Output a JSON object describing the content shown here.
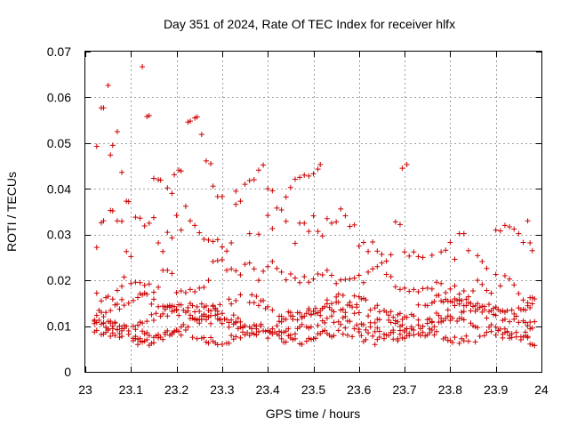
{
  "chart_data": {
    "type": "scatter",
    "title": "Day 351 of 2024, Rate Of TEC Index for receiver hlfx",
    "xlabel": "GPS time / hours",
    "ylabel": "ROTI / TECUs",
    "xlim": [
      23,
      24
    ],
    "ylim": [
      0,
      0.07
    ],
    "x_ticks": [
      "23",
      "23.1",
      "23.2",
      "23.3",
      "23.4",
      "23.5",
      "23.6",
      "23.7",
      "23.8",
      "23.9",
      "24"
    ],
    "y_ticks": [
      "0",
      "0.01",
      "0.02",
      "0.03",
      "0.04",
      "0.05",
      "0.06",
      "0.07"
    ],
    "grid": true,
    "marker": "+",
    "color": "#cc0000",
    "series": [
      {
        "name": "ROTI",
        "points": [
          [
            23.025,
            0.0493
          ],
          [
            23.035,
            0.0577
          ],
          [
            23.04,
            0.0577
          ],
          [
            23.05,
            0.0626
          ],
          [
            23.055,
            0.0474
          ],
          [
            23.06,
            0.0495
          ],
          [
            23.07,
            0.0525
          ],
          [
            23.08,
            0.0436
          ],
          [
            23.09,
            0.0373
          ],
          [
            23.095,
            0.0372
          ],
          [
            23.125,
            0.0667
          ],
          [
            23.135,
            0.0558
          ],
          [
            23.14,
            0.056
          ],
          [
            23.15,
            0.0423
          ],
          [
            23.16,
            0.042
          ],
          [
            23.165,
            0.0419
          ],
          [
            23.18,
            0.0402
          ],
          [
            23.19,
            0.039
          ],
          [
            23.195,
            0.0431
          ],
          [
            23.205,
            0.0441
          ],
          [
            23.21,
            0.0439
          ],
          [
            23.225,
            0.0546
          ],
          [
            23.23,
            0.0548
          ],
          [
            23.24,
            0.0555
          ],
          [
            23.245,
            0.0557
          ],
          [
            23.255,
            0.0519
          ],
          [
            23.265,
            0.0461
          ],
          [
            23.275,
            0.0455
          ],
          [
            23.28,
            0.0406
          ],
          [
            23.29,
            0.0383
          ],
          [
            23.3,
            0.0383
          ],
          [
            23.33,
            0.0395
          ],
          [
            23.35,
            0.041
          ],
          [
            23.36,
            0.0418
          ],
          [
            23.37,
            0.042
          ],
          [
            23.38,
            0.0441
          ],
          [
            23.39,
            0.0452
          ],
          [
            23.4,
            0.04
          ],
          [
            23.41,
            0.0396
          ],
          [
            23.44,
            0.0382
          ],
          [
            23.45,
            0.0403
          ],
          [
            23.46,
            0.0421
          ],
          [
            23.47,
            0.0425
          ],
          [
            23.48,
            0.043
          ],
          [
            23.49,
            0.0428
          ],
          [
            23.5,
            0.0433
          ],
          [
            23.51,
            0.0443
          ],
          [
            23.515,
            0.0453
          ],
          [
            23.695,
            0.0445
          ],
          [
            23.705,
            0.0453
          ],
          [
            23.025,
            0.0272
          ],
          [
            23.035,
            0.0326
          ],
          [
            23.04,
            0.033
          ],
          [
            23.055,
            0.0353
          ],
          [
            23.06,
            0.0352
          ],
          [
            23.07,
            0.033
          ],
          [
            23.08,
            0.0329
          ],
          [
            23.09,
            0.0263
          ],
          [
            23.1,
            0.0252
          ],
          [
            23.11,
            0.0338
          ],
          [
            23.12,
            0.0336
          ],
          [
            23.13,
            0.0319
          ],
          [
            23.14,
            0.0325
          ],
          [
            23.15,
            0.0337
          ],
          [
            23.16,
            0.0282
          ],
          [
            23.17,
            0.0263
          ],
          [
            23.18,
            0.0305
          ],
          [
            23.19,
            0.0293
          ],
          [
            23.2,
            0.0342
          ],
          [
            23.21,
            0.031
          ],
          [
            23.22,
            0.0362
          ],
          [
            23.23,
            0.033
          ],
          [
            23.24,
            0.032
          ],
          [
            23.25,
            0.0304
          ],
          [
            23.26,
            0.029
          ],
          [
            23.27,
            0.0288
          ],
          [
            23.28,
            0.0285
          ],
          [
            23.29,
            0.0289
          ],
          [
            23.3,
            0.0273
          ],
          [
            23.31,
            0.0264
          ],
          [
            23.32,
            0.0282
          ],
          [
            23.33,
            0.0366
          ],
          [
            23.34,
            0.0373
          ],
          [
            23.36,
            0.0302
          ],
          [
            23.38,
            0.0301
          ],
          [
            23.4,
            0.0342
          ],
          [
            23.41,
            0.0313
          ],
          [
            23.42,
            0.0358
          ],
          [
            23.43,
            0.0354
          ],
          [
            23.44,
            0.0329
          ],
          [
            23.46,
            0.0281
          ],
          [
            23.47,
            0.0325
          ],
          [
            23.48,
            0.0325
          ],
          [
            23.49,
            0.0307
          ],
          [
            23.5,
            0.0341
          ],
          [
            23.51,
            0.0307
          ],
          [
            23.52,
            0.0297
          ],
          [
            23.53,
            0.0335
          ],
          [
            23.54,
            0.0325
          ],
          [
            23.55,
            0.0328
          ],
          [
            23.56,
            0.0356
          ],
          [
            23.57,
            0.0341
          ],
          [
            23.58,
            0.0318
          ],
          [
            23.59,
            0.0321
          ],
          [
            23.6,
            0.0275
          ],
          [
            23.61,
            0.0283
          ],
          [
            23.62,
            0.0263
          ],
          [
            23.63,
            0.0284
          ],
          [
            23.64,
            0.0264
          ],
          [
            23.65,
            0.0257
          ],
          [
            23.66,
            0.0242
          ],
          [
            23.67,
            0.0256
          ],
          [
            23.68,
            0.0328
          ],
          [
            23.69,
            0.0322
          ],
          [
            23.7,
            0.0262
          ],
          [
            23.71,
            0.0253
          ],
          [
            23.72,
            0.0262
          ],
          [
            23.73,
            0.0252
          ],
          [
            23.74,
            0.025
          ],
          [
            23.76,
            0.0255
          ],
          [
            23.78,
            0.0262
          ],
          [
            23.79,
            0.0266
          ],
          [
            23.8,
            0.0283
          ],
          [
            23.81,
            0.0246
          ],
          [
            23.82,
            0.0302
          ],
          [
            23.83,
            0.0302
          ],
          [
            23.84,
            0.0265
          ],
          [
            23.86,
            0.0254
          ],
          [
            23.87,
            0.0241
          ],
          [
            23.88,
            0.0226
          ],
          [
            23.9,
            0.031
          ],
          [
            23.91,
            0.0308
          ],
          [
            23.92,
            0.032
          ],
          [
            23.93,
            0.0317
          ],
          [
            23.94,
            0.0312
          ],
          [
            23.95,
            0.0302
          ],
          [
            23.96,
            0.0283
          ],
          [
            23.97,
            0.033
          ],
          [
            23.975,
            0.0282
          ],
          [
            23.98,
            0.0265
          ],
          [
            23.025,
            0.0172
          ],
          [
            23.035,
            0.0155
          ],
          [
            23.045,
            0.0162
          ],
          [
            23.05,
            0.0165
          ],
          [
            23.06,
            0.0159
          ],
          [
            23.07,
            0.0178
          ],
          [
            23.08,
            0.0187
          ],
          [
            23.085,
            0.0207
          ],
          [
            23.1,
            0.0193
          ],
          [
            23.11,
            0.0196
          ],
          [
            23.12,
            0.0195
          ],
          [
            23.13,
            0.0189
          ],
          [
            23.14,
            0.0192
          ],
          [
            23.15,
            0.0174
          ],
          [
            23.16,
            0.0185
          ],
          [
            23.17,
            0.0222
          ],
          [
            23.18,
            0.0222
          ],
          [
            23.19,
            0.0215
          ],
          [
            23.2,
            0.0173
          ],
          [
            23.21,
            0.0177
          ],
          [
            23.22,
            0.0173
          ],
          [
            23.23,
            0.018
          ],
          [
            23.24,
            0.0175
          ],
          [
            23.25,
            0.0183
          ],
          [
            23.26,
            0.0185
          ],
          [
            23.27,
            0.02
          ],
          [
            23.28,
            0.0241
          ],
          [
            23.29,
            0.0243
          ],
          [
            23.3,
            0.0245
          ],
          [
            23.31,
            0.0222
          ],
          [
            23.32,
            0.0225
          ],
          [
            23.33,
            0.0221
          ],
          [
            23.34,
            0.0212
          ],
          [
            23.35,
            0.0235
          ],
          [
            23.36,
            0.0238
          ],
          [
            23.37,
            0.0225
          ],
          [
            23.38,
            0.02
          ],
          [
            23.39,
            0.022
          ],
          [
            23.4,
            0.023
          ],
          [
            23.41,
            0.0241
          ],
          [
            23.42,
            0.0226
          ],
          [
            23.43,
            0.0218
          ],
          [
            23.44,
            0.0201
          ],
          [
            23.45,
            0.0214
          ],
          [
            23.46,
            0.0205
          ],
          [
            23.47,
            0.0195
          ],
          [
            23.48,
            0.0208
          ],
          [
            23.49,
            0.0196
          ],
          [
            23.5,
            0.0203
          ],
          [
            23.51,
            0.0214
          ],
          [
            23.52,
            0.0212
          ],
          [
            23.53,
            0.0222
          ],
          [
            23.54,
            0.0211
          ],
          [
            23.55,
            0.0193
          ],
          [
            23.56,
            0.0201
          ],
          [
            23.57,
            0.0202
          ],
          [
            23.58,
            0.0203
          ],
          [
            23.59,
            0.0205
          ],
          [
            23.6,
            0.0211
          ],
          [
            23.61,
            0.0195
          ],
          [
            23.62,
            0.0218
          ],
          [
            23.63,
            0.0225
          ],
          [
            23.64,
            0.023
          ],
          [
            23.65,
            0.0238
          ],
          [
            23.66,
            0.0213
          ],
          [
            23.67,
            0.0208
          ],
          [
            23.68,
            0.0186
          ],
          [
            23.69,
            0.018
          ],
          [
            23.7,
            0.0183
          ],
          [
            23.71,
            0.0176
          ],
          [
            23.72,
            0.018
          ],
          [
            23.73,
            0.0175
          ],
          [
            23.74,
            0.0182
          ],
          [
            23.75,
            0.0183
          ],
          [
            23.76,
            0.0181
          ],
          [
            23.77,
            0.0196
          ],
          [
            23.78,
            0.0193
          ],
          [
            23.79,
            0.0173
          ],
          [
            23.8,
            0.0181
          ],
          [
            23.81,
            0.0188
          ],
          [
            23.82,
            0.017
          ],
          [
            23.83,
            0.0177
          ],
          [
            23.84,
            0.0164
          ],
          [
            23.85,
            0.0177
          ],
          [
            23.86,
            0.02
          ],
          [
            23.87,
            0.0191
          ],
          [
            23.88,
            0.0178
          ],
          [
            23.89,
            0.0172
          ],
          [
            23.9,
            0.0213
          ],
          [
            23.91,
            0.0188
          ],
          [
            23.92,
            0.021
          ],
          [
            23.93,
            0.0203
          ],
          [
            23.94,
            0.019
          ],
          [
            23.95,
            0.0171
          ],
          [
            23.96,
            0.0157
          ],
          [
            23.97,
            0.0151
          ],
          [
            23.975,
            0.0162
          ],
          [
            23.98,
            0.0162
          ]
        ]
      },
      {
        "name": "ROTI",
        "generated": {
          "x_start": 23.02,
          "x_end": 23.985,
          "step": 0.005,
          "bands": [
            {
              "base": 0.0078,
              "amp": 0.0012,
              "freq": 17.3,
              "phase": 0.2
            },
            {
              "base": 0.0098,
              "amp": 0.0018,
              "freq": 11.1,
              "phase": 1.6
            },
            {
              "base": 0.012,
              "amp": 0.0022,
              "freq": 9.7,
              "phase": 3.1
            },
            {
              "base": 0.0142,
              "amp": 0.002,
              "freq": 13.4,
              "phase": 4.4
            }
          ]
        }
      }
    ]
  }
}
